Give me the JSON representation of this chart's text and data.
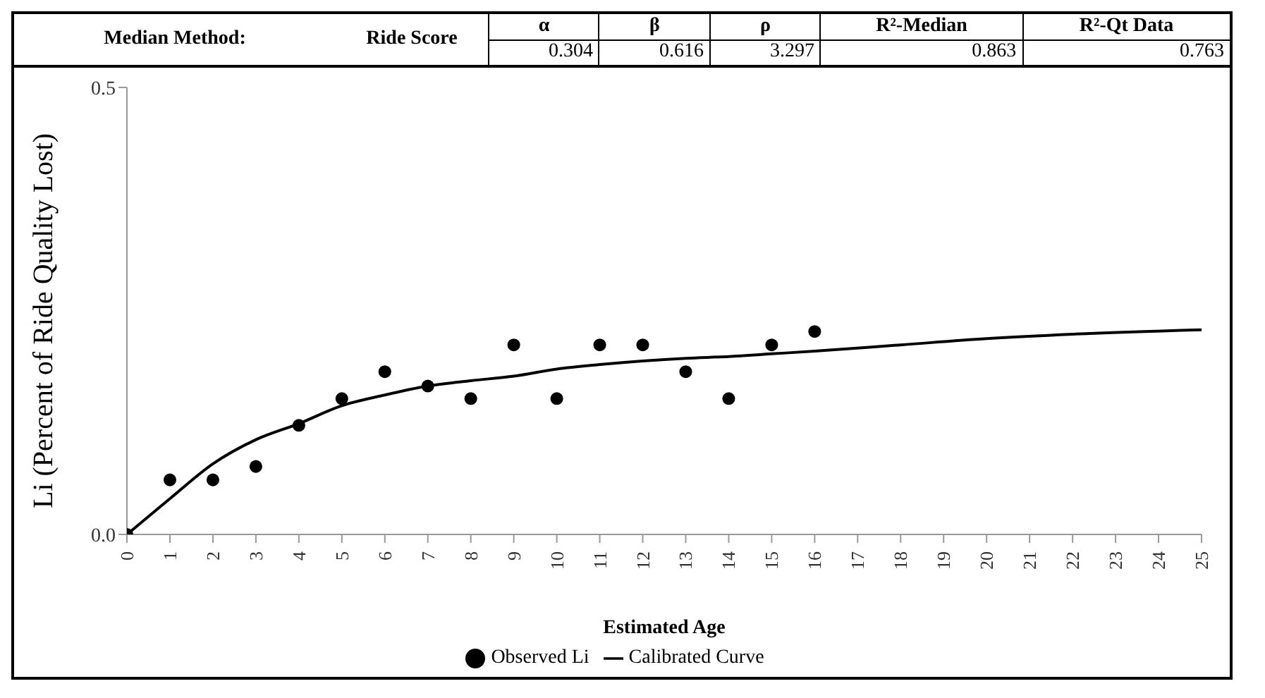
{
  "chart_data": {
    "type": "scatter",
    "xlabel": "Estimated Age",
    "ylabel": "Li (Percent of Ride Quality Lost)",
    "annotations": [
      "Median Method:",
      "Ride Score",
      "α",
      "β",
      "ρ",
      "R²-Median",
      "R²-Qt Data",
      "0.304",
      "0.616",
      "3.297",
      "0.863",
      "0.763"
    ],
    "xlim": [
      0,
      25
    ],
    "xticks": [
      0,
      1,
      2,
      3,
      4,
      5,
      6,
      7,
      8,
      9,
      10,
      11,
      12,
      13,
      14,
      15,
      16,
      17,
      18,
      19,
      20,
      21,
      22,
      23,
      24,
      25
    ],
    "ylim": [
      0,
      0.5
    ],
    "yticks": [
      {
        "value": 0,
        "label": "0.0"
      },
      {
        "value": 0.5,
        "label": "0.5"
      }
    ],
    "legend": "bottom",
    "series": [
      {
        "name": "Observed Li",
        "marker": "circle",
        "color": "#000000",
        "x": [
          0,
          1,
          2,
          3,
          4,
          5,
          6,
          7,
          8,
          9,
          10,
          11,
          12,
          13,
          14,
          15,
          16
        ],
        "values": [
          0,
          0.061,
          0.061,
          0.076,
          0.122,
          0.152,
          0.182,
          0.166,
          0.152,
          0.212,
          0.152,
          0.212,
          0.212,
          0.182,
          0.152,
          0.212,
          0.227
        ]
      },
      {
        "name": "Calibrated Curve",
        "type": "line",
        "marker": "none",
        "line_style": "solid",
        "color": "#000000",
        "x": [
          0,
          1,
          2,
          3,
          4,
          5,
          6,
          7,
          8,
          9,
          10,
          11,
          12,
          13,
          14,
          15,
          16,
          18,
          20,
          22,
          25
        ],
        "values": [
          0,
          0.04,
          0.079,
          0.106,
          0.124,
          0.144,
          0.156,
          0.166,
          0.172,
          0.177,
          0.185,
          0.19,
          0.194,
          0.197,
          0.199,
          0.202,
          0.205,
          0.212,
          0.219,
          0.224,
          0.229
        ]
      }
    ]
  }
}
